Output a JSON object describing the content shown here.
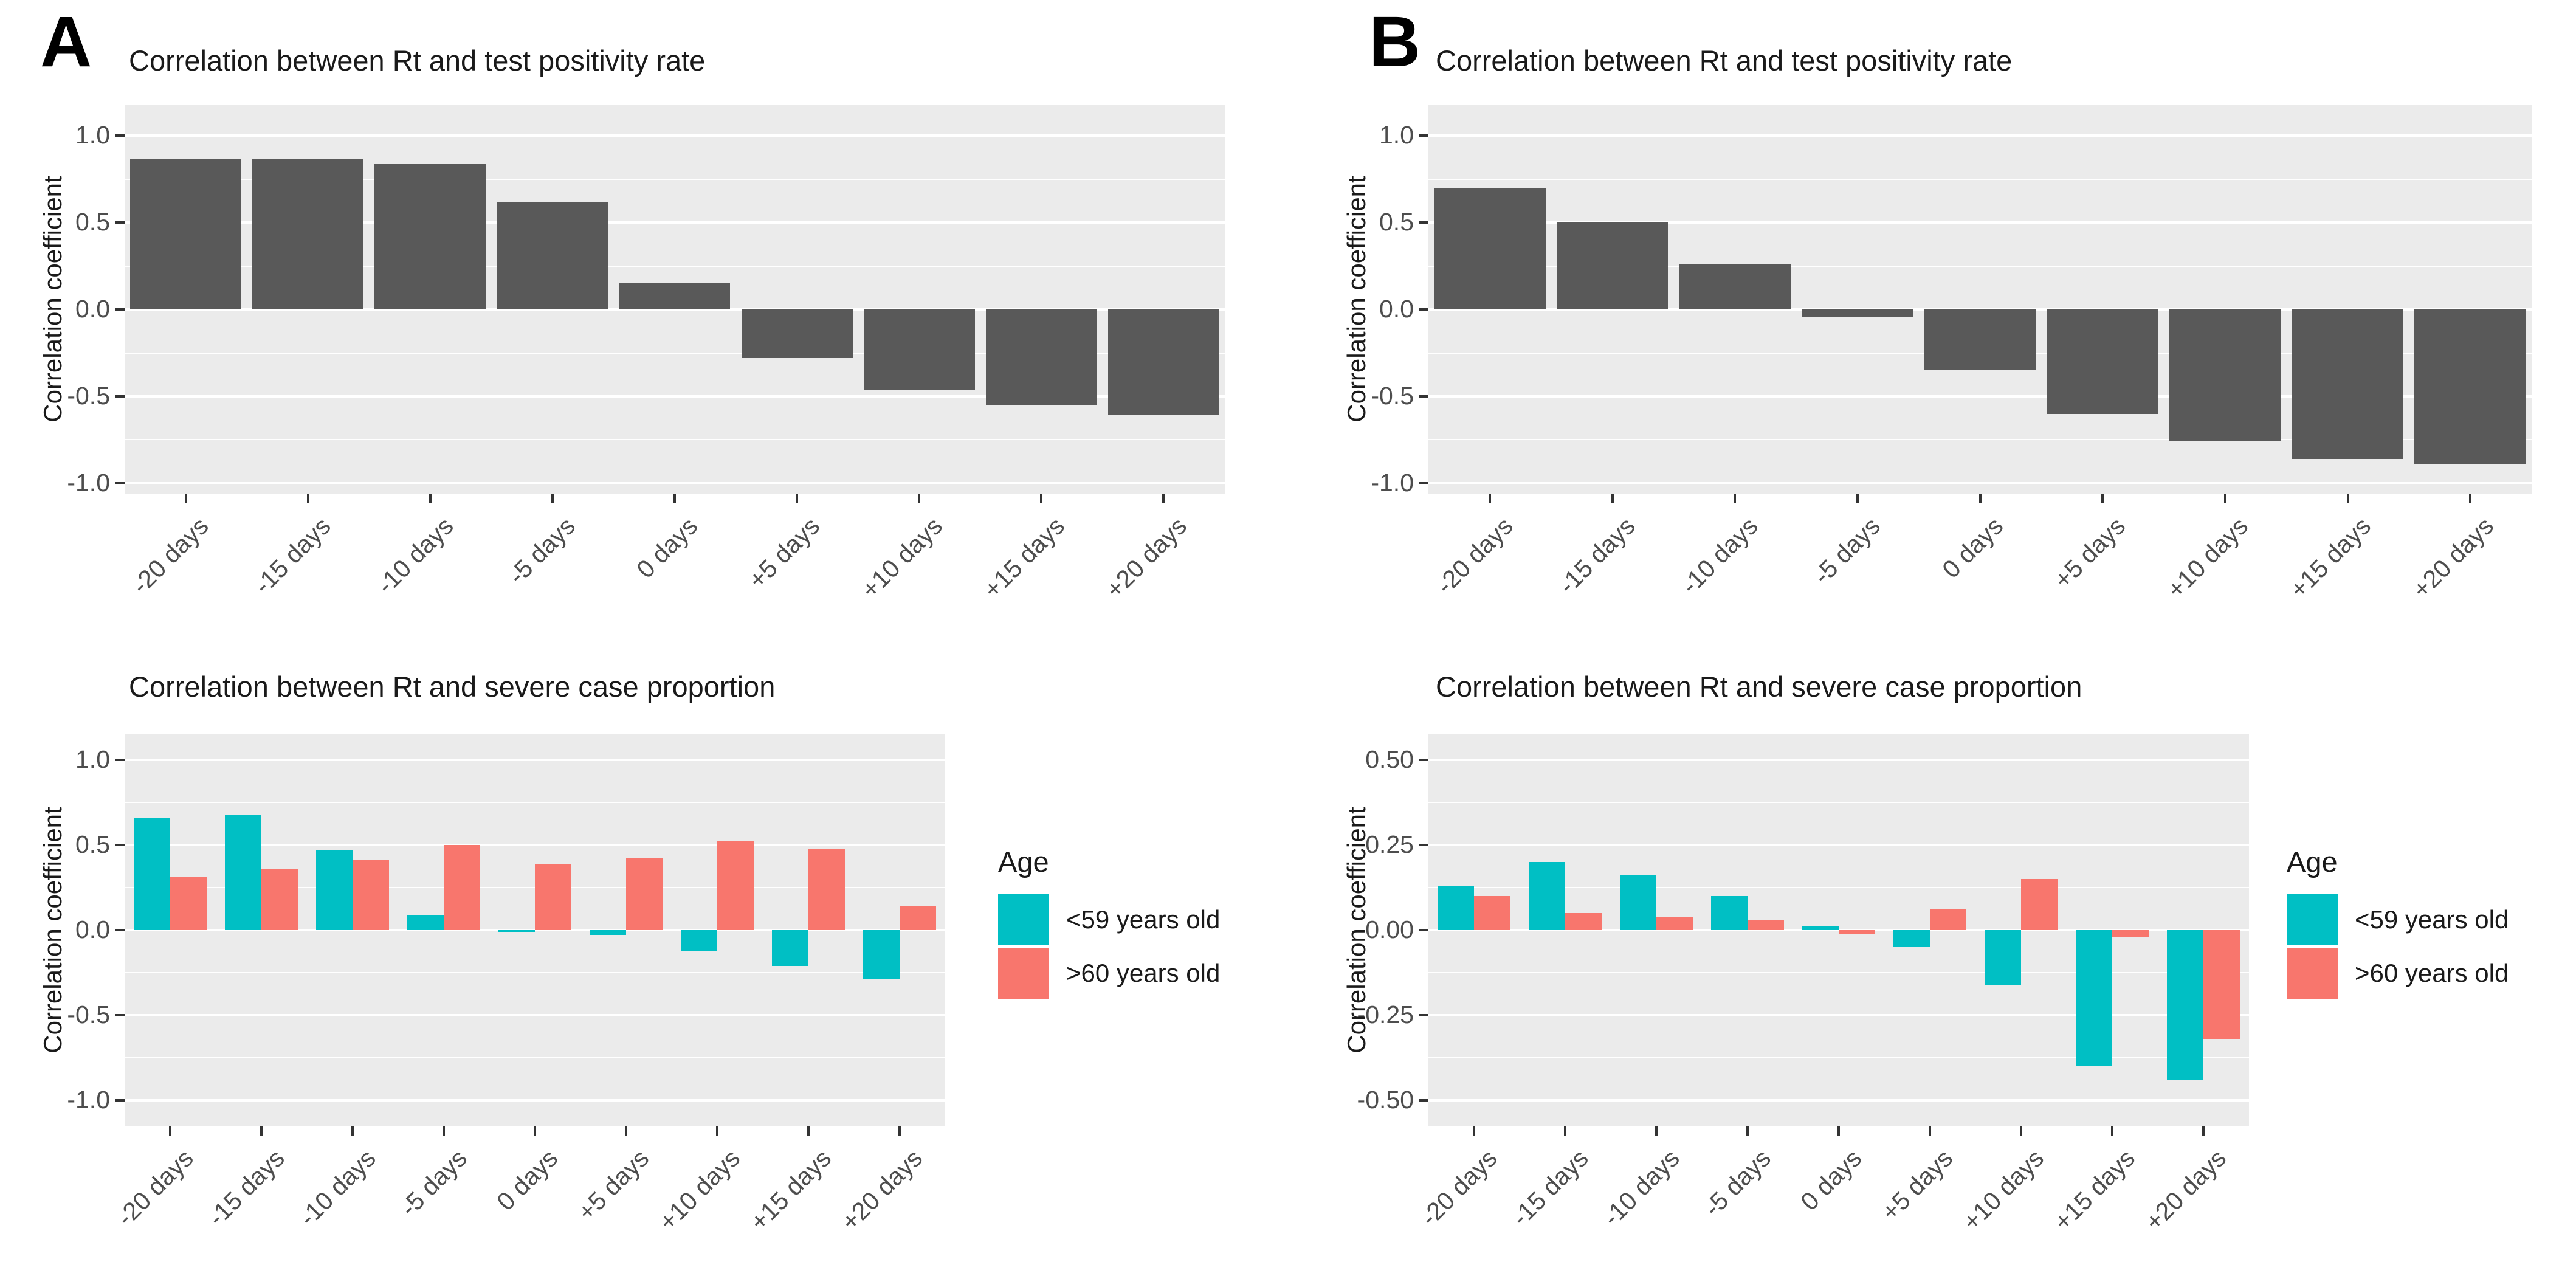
{
  "figure": {
    "panel_a_letter": "A",
    "panel_b_letter": "B",
    "legend": {
      "title": "Age",
      "items": [
        {
          "label": "<59 years old",
          "color": "#00BFC4"
        },
        {
          "label": ">60 years old",
          "color": "#F8766D"
        }
      ]
    },
    "colors": {
      "bar_gray": "#595959",
      "teal": "#00BFC4",
      "salmon": "#F8766D",
      "panel_background": "#EBEBEB",
      "gridline": "#FFFFFF",
      "tick_text": "#4D4D4D"
    }
  },
  "chart_data": [
    {
      "id": "panel-a-test-positivity",
      "type": "bar",
      "title": "Correlation between Rt and test positivity rate",
      "ylabel": "Correlation coefficient",
      "xlabel": "",
      "categories": [
        "-20 days",
        "-15 days",
        "-10 days",
        "-5 days",
        "0 days",
        "+5 days",
        "+10 days",
        "+15 days",
        "+20 days"
      ],
      "values": [
        0.87,
        0.87,
        0.84,
        0.62,
        0.15,
        -0.28,
        -0.46,
        -0.55,
        -0.61
      ],
      "bar_color": "#595959",
      "yticks": [
        1.0,
        0.5,
        0.0,
        -0.5,
        -1.0
      ],
      "ytick_labels": [
        "1.0",
        "0.5",
        "0.0",
        "-0.5",
        "-1.0"
      ],
      "ylim": [
        -1.06,
        1.18
      ],
      "grid": true,
      "legend_position": "none"
    },
    {
      "id": "panel-b-test-positivity",
      "type": "bar",
      "title": "Correlation between Rt and test positivity rate",
      "ylabel": "Correlation coefficient",
      "xlabel": "",
      "categories": [
        "-20 days",
        "-15 days",
        "-10 days",
        "-5 days",
        "0 days",
        "+5 days",
        "+10 days",
        "+15 days",
        "+20 days"
      ],
      "values": [
        0.7,
        0.5,
        0.26,
        -0.04,
        -0.35,
        -0.6,
        -0.76,
        -0.86,
        -0.89
      ],
      "bar_color": "#595959",
      "yticks": [
        1.0,
        0.5,
        0.0,
        -0.5,
        -1.0
      ],
      "ytick_labels": [
        "1.0",
        "0.5",
        "0.0",
        "-0.5",
        "-1.0"
      ],
      "ylim": [
        -1.06,
        1.18
      ],
      "grid": true,
      "legend_position": "none"
    },
    {
      "id": "panel-a-severe-case",
      "type": "bar",
      "title": "Correlation between Rt and severe case proportion",
      "ylabel": "Correlation coefficient",
      "xlabel": "",
      "categories": [
        "-20 days",
        "-15 days",
        "-10 days",
        "-5 days",
        "0 days",
        "+5 days",
        "+10 days",
        "+15 days",
        "+20 days"
      ],
      "series": [
        {
          "name": "<59 years old",
          "color": "#00BFC4",
          "values": [
            0.66,
            0.68,
            0.47,
            0.09,
            0.0,
            -0.03,
            -0.12,
            -0.21,
            -0.29
          ]
        },
        {
          "name": ">60 years old",
          "color": "#F8766D",
          "values": [
            0.31,
            0.36,
            0.41,
            0.5,
            0.39,
            0.42,
            0.52,
            0.48,
            0.14
          ]
        }
      ],
      "yticks": [
        1.0,
        0.5,
        0.0,
        -0.5,
        -1.0
      ],
      "ytick_labels": [
        "1.0",
        "0.5",
        "0.0",
        "-0.5",
        "-1.0"
      ],
      "ylim": [
        -1.15,
        1.15
      ],
      "grid": true,
      "legend_position": "right"
    },
    {
      "id": "panel-b-severe-case",
      "type": "bar",
      "title": "Correlation between Rt and severe case proportion",
      "ylabel": "Correlation coefficient",
      "xlabel": "",
      "categories": [
        "-20 days",
        "-15 days",
        "-10 days",
        "-5 days",
        "0 days",
        "+5 days",
        "+10 days",
        "+15 days",
        "+20 days"
      ],
      "series": [
        {
          "name": "<59 years old",
          "color": "#00BFC4",
          "values": [
            0.13,
            0.2,
            0.16,
            0.1,
            0.01,
            -0.05,
            -0.16,
            -0.4,
            -0.44
          ]
        },
        {
          "name": ">60 years old",
          "color": "#F8766D",
          "values": [
            0.1,
            0.05,
            0.04,
            0.03,
            -0.01,
            0.06,
            0.15,
            -0.02,
            -0.32
          ]
        }
      ],
      "yticks": [
        0.5,
        0.25,
        0.0,
        -0.25,
        -0.5
      ],
      "ytick_labels": [
        "0.50",
        "0.25",
        "0.00",
        "-0.25",
        "-0.50"
      ],
      "ylim": [
        -0.575,
        0.575
      ],
      "grid": true,
      "legend_position": "right"
    }
  ]
}
